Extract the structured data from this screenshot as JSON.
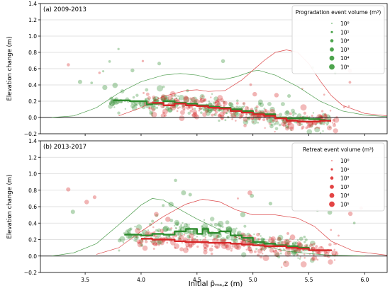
{
  "chart_data": [
    {
      "type": "scatter",
      "panel_label": "(a) 2009-2013",
      "ylabel": "Elevation change (m)",
      "xlim": [
        3.1,
        6.2
      ],
      "ylim": [
        -0.2,
        1.4
      ],
      "yticks": [
        -0.2,
        0.0,
        0.2,
        0.4,
        0.6,
        0.8,
        1.0,
        1.2,
        1.4
      ],
      "ytick_labels": [
        "−0.2",
        "0.0",
        "0.2",
        "0.4",
        "0.6",
        "0.8",
        "1.0",
        "1.2",
        "1.4"
      ],
      "grid": "horizontal",
      "legend": {
        "title": "Progradation event volume (m³)",
        "placement": "top-right",
        "entries": [
          "10⁰",
          "10¹",
          "10²",
          "10³",
          "10⁴",
          "10⁵"
        ],
        "color": "#3a9a3a"
      },
      "series": [
        {
          "name": "Progradation",
          "color": "#2e8b2e",
          "median_line": [
            [
              3.75,
              0.21
            ],
            [
              3.9,
              0.2
            ],
            [
              4.0,
              0.2
            ],
            [
              4.05,
              0.16
            ],
            [
              4.1,
              0.17
            ],
            [
              4.2,
              0.2
            ],
            [
              4.3,
              0.18
            ],
            [
              4.4,
              0.17
            ],
            [
              4.5,
              0.15
            ],
            [
              4.6,
              0.13
            ],
            [
              4.7,
              0.12
            ],
            [
              4.8,
              0.1
            ],
            [
              4.9,
              0.08
            ],
            [
              5.0,
              0.05
            ],
            [
              5.1,
              0.04
            ],
            [
              5.2,
              0.0
            ],
            [
              5.3,
              -0.01
            ],
            [
              5.4,
              -0.01
            ],
            [
              5.5,
              -0.02
            ],
            [
              5.6,
              -0.03
            ],
            [
              5.65,
              -0.03
            ]
          ],
          "density_curve": [
            [
              3.2,
              0.0
            ],
            [
              3.4,
              0.02
            ],
            [
              3.6,
              0.12
            ],
            [
              3.8,
              0.3
            ],
            [
              4.0,
              0.44
            ],
            [
              4.2,
              0.52
            ],
            [
              4.35,
              0.54
            ],
            [
              4.5,
              0.52
            ],
            [
              4.65,
              0.47
            ],
            [
              4.75,
              0.47
            ],
            [
              4.85,
              0.5
            ],
            [
              5.0,
              0.57
            ],
            [
              5.05,
              0.58
            ],
            [
              5.2,
              0.52
            ],
            [
              5.4,
              0.38
            ],
            [
              5.6,
              0.2
            ],
            [
              5.8,
              0.08
            ],
            [
              6.0,
              0.03
            ],
            [
              6.2,
              0.01
            ]
          ]
        },
        {
          "name": "Retreat",
          "color": "#d62728",
          "median_line": [
            [
              4.1,
              0.18
            ],
            [
              4.2,
              0.15
            ],
            [
              4.3,
              0.17
            ],
            [
              4.4,
              0.15
            ],
            [
              4.5,
              0.14
            ],
            [
              4.6,
              0.12
            ],
            [
              4.7,
              0.11
            ],
            [
              4.8,
              0.08
            ],
            [
              4.9,
              0.06
            ],
            [
              5.0,
              0.04
            ],
            [
              5.1,
              0.02
            ],
            [
              5.2,
              -0.01
            ],
            [
              5.3,
              -0.04
            ],
            [
              5.4,
              -0.05
            ],
            [
              5.5,
              -0.05
            ],
            [
              5.6,
              -0.04
            ],
            [
              5.7,
              -0.04
            ]
          ],
          "density_curve": [
            [
              3.8,
              0.02
            ],
            [
              4.0,
              0.12
            ],
            [
              4.2,
              0.26
            ],
            [
              4.4,
              0.33
            ],
            [
              4.5,
              0.34
            ],
            [
              4.6,
              0.32
            ],
            [
              4.75,
              0.33
            ],
            [
              4.9,
              0.46
            ],
            [
              5.0,
              0.58
            ],
            [
              5.1,
              0.7
            ],
            [
              5.2,
              0.8
            ],
            [
              5.3,
              0.83
            ],
            [
              5.4,
              0.8
            ],
            [
              5.5,
              0.66
            ],
            [
              5.6,
              0.45
            ],
            [
              5.7,
              0.27
            ],
            [
              5.8,
              0.15
            ],
            [
              6.0,
              0.05
            ],
            [
              6.2,
              0.02
            ]
          ]
        }
      ],
      "zero_line": 0.0
    },
    {
      "type": "scatter",
      "panel_label": "(b) 2013-2017",
      "ylabel": "Elevation change (m)",
      "xlabel": "Initial p̃ₘₐ,z (m)",
      "xlim": [
        3.1,
        6.2
      ],
      "xticks": [
        3.5,
        4.0,
        4.5,
        5.0,
        5.5,
        6.0
      ],
      "xtick_labels": [
        "3.5",
        "4.0",
        "4.5",
        "5.0",
        "5.5",
        "6.0"
      ],
      "ylim": [
        -0.2,
        1.4
      ],
      "yticks": [
        -0.2,
        0.0,
        0.2,
        0.4,
        0.6,
        0.8,
        1.0,
        1.2,
        1.4
      ],
      "ytick_labels": [
        "−0.2",
        "0.0",
        "0.2",
        "0.4",
        "0.6",
        "0.8",
        "1.0",
        "1.2",
        "1.4"
      ],
      "grid": "horizontal",
      "legend": {
        "title": "Retreat event volume (m³)",
        "placement": "top-right",
        "entries": [
          "10⁰",
          "10¹",
          "10²",
          "10³",
          "10⁴",
          "10⁵"
        ],
        "color": "#e03030"
      },
      "series": [
        {
          "name": "Progradation",
          "color": "#2e8b2e",
          "median_line": [
            [
              3.85,
              0.26
            ],
            [
              4.0,
              0.25
            ],
            [
              4.1,
              0.27
            ],
            [
              4.2,
              0.26
            ],
            [
              4.3,
              0.3
            ],
            [
              4.4,
              0.33
            ],
            [
              4.5,
              0.27
            ],
            [
              4.55,
              0.33
            ],
            [
              4.6,
              0.28
            ],
            [
              4.7,
              0.3
            ],
            [
              4.8,
              0.25
            ],
            [
              4.9,
              0.22
            ],
            [
              5.0,
              0.17
            ],
            [
              5.1,
              0.15
            ],
            [
              5.2,
              0.13
            ],
            [
              5.3,
              0.12
            ],
            [
              5.4,
              0.1
            ],
            [
              5.5,
              0.08
            ]
          ],
          "density_curve": [
            [
              3.2,
              0.0
            ],
            [
              3.4,
              0.04
            ],
            [
              3.6,
              0.15
            ],
            [
              3.8,
              0.38
            ],
            [
              4.0,
              0.62
            ],
            [
              4.1,
              0.7
            ],
            [
              4.2,
              0.68
            ],
            [
              4.3,
              0.6
            ],
            [
              4.5,
              0.45
            ],
            [
              4.7,
              0.32
            ],
            [
              4.9,
              0.2
            ],
            [
              5.1,
              0.12
            ],
            [
              5.3,
              0.06
            ],
            [
              5.5,
              0.03
            ],
            [
              5.7,
              0.01
            ],
            [
              6.0,
              0.0
            ]
          ]
        },
        {
          "name": "Retreat",
          "color": "#d62728",
          "median_line": [
            [
              4.0,
              0.21
            ],
            [
              4.1,
              0.2
            ],
            [
              4.2,
              0.2
            ],
            [
              4.3,
              0.18
            ],
            [
              4.4,
              0.17
            ],
            [
              4.5,
              0.17
            ],
            [
              4.6,
              0.16
            ],
            [
              4.7,
              0.16
            ],
            [
              4.8,
              0.15
            ],
            [
              4.9,
              0.14
            ],
            [
              5.0,
              0.13
            ],
            [
              5.1,
              0.12
            ],
            [
              5.2,
              0.12
            ],
            [
              5.3,
              0.1
            ],
            [
              5.4,
              0.09
            ],
            [
              5.5,
              0.07
            ],
            [
              5.6,
              0.07
            ],
            [
              5.7,
              0.06
            ]
          ],
          "density_curve": [
            [
              3.6,
              0.02
            ],
            [
              3.8,
              0.1
            ],
            [
              4.0,
              0.3
            ],
            [
              4.2,
              0.48
            ],
            [
              4.4,
              0.63
            ],
            [
              4.55,
              0.69
            ],
            [
              4.7,
              0.66
            ],
            [
              4.85,
              0.56
            ],
            [
              5.0,
              0.5
            ],
            [
              5.2,
              0.5
            ],
            [
              5.4,
              0.46
            ],
            [
              5.55,
              0.36
            ],
            [
              5.7,
              0.18
            ],
            [
              5.9,
              0.06
            ],
            [
              6.2,
              0.01
            ]
          ]
        }
      ],
      "zero_line": 0.0
    }
  ]
}
